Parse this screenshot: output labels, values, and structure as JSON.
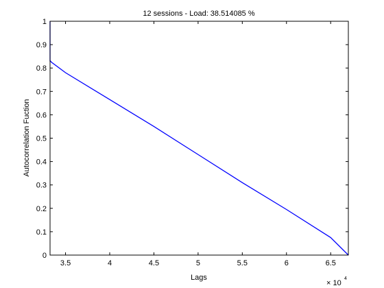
{
  "chart_data": {
    "type": "line",
    "title": "12 sessions - Load: 38.514085 %",
    "xlabel": "Lags",
    "ylabel": "Autocorrelation Fuction",
    "x_multiplier_label": "× 10",
    "x_multiplier_exponent": "4",
    "xlim": [
      33250,
      67000
    ],
    "ylim": [
      0,
      1
    ],
    "x_ticks": [
      35000,
      40000,
      45000,
      50000,
      55000,
      60000,
      65000
    ],
    "x_tick_labels": [
      "3.5",
      "4",
      "4.5",
      "5",
      "5.5",
      "6",
      "6.5"
    ],
    "y_ticks": [
      0,
      0.1,
      0.2,
      0.3,
      0.4,
      0.5,
      0.6,
      0.7,
      0.8,
      0.9,
      1
    ],
    "y_tick_labels": [
      "0",
      "0.1",
      "0.2",
      "0.3",
      "0.4",
      "0.5",
      "0.6",
      "0.7",
      "0.8",
      "0.9",
      "1"
    ],
    "grid": false,
    "series": [
      {
        "name": "autocorrelation",
        "color": "#0000ff",
        "x": [
          33250,
          33250,
          33300,
          33400,
          35000,
          40000,
          45000,
          50000,
          55000,
          60000,
          65000,
          67000
        ],
        "y": [
          1.0,
          0.83,
          0.83,
          0.825,
          0.78,
          0.665,
          0.55,
          0.43,
          0.31,
          0.195,
          0.075,
          0.0
        ]
      }
    ]
  }
}
